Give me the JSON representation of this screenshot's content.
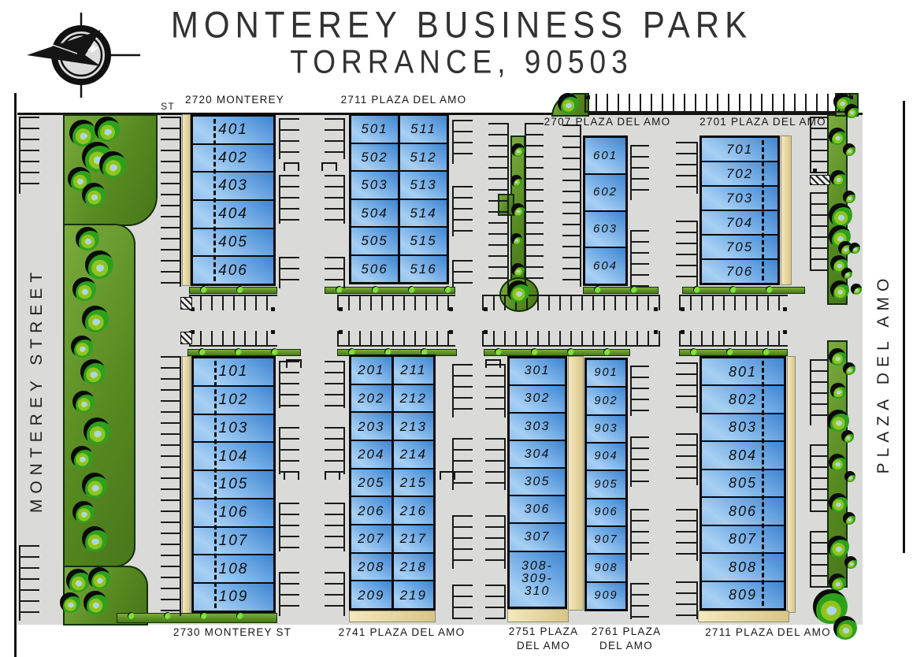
{
  "title": {
    "line1": "MONTEREY BUSINESS PARK",
    "line2": "TORRANCE, 90503"
  },
  "streets": {
    "left": "MONTEREY STREET",
    "right": "PLAZA DEL AMO",
    "st_abbrev": "ST"
  },
  "icons": {
    "compass": "compass-rose-north-arrow",
    "tree": "tree",
    "bush": "shrub"
  },
  "colors": {
    "building_blue_dark": "#3f85cf",
    "building_blue_light": "#a7d0f4",
    "planter_green": "#578a21",
    "hedge_green": "#467a16",
    "tree_green": "#2da11c",
    "pavement_gray": "#dadad8",
    "walkway_tan": "#ecdfae",
    "line_black": "#111111"
  },
  "buildings": [
    {
      "id": "b2720",
      "address": "2720 MONTEREY",
      "units": [
        "401",
        "402",
        "403",
        "404",
        "405",
        "406"
      ]
    },
    {
      "id": "b2711n",
      "address": "2711 PLAZA DEL AMO",
      "units_left": [
        "501",
        "502",
        "503",
        "504",
        "505",
        "506"
      ],
      "units_right": [
        "511",
        "512",
        "513",
        "514",
        "515",
        "516"
      ]
    },
    {
      "id": "b2707",
      "address": "2707 PLAZA DEL AMO",
      "units": [
        "601",
        "602",
        "603",
        "604"
      ]
    },
    {
      "id": "b2701",
      "address": "2701 PLAZA DEL AMO",
      "units": [
        "701",
        "702",
        "703",
        "704",
        "705",
        "706"
      ]
    },
    {
      "id": "b2730",
      "address": "2730 MONTEREY ST",
      "units": [
        "101",
        "102",
        "103",
        "104",
        "105",
        "106",
        "107",
        "108",
        "109"
      ]
    },
    {
      "id": "b2741",
      "address": "2741 PLAZA DEL AMO",
      "units_left": [
        "201",
        "202",
        "203",
        "204",
        "205",
        "206",
        "207",
        "208",
        "209"
      ],
      "units_right": [
        "211",
        "212",
        "213",
        "214",
        "215",
        "216",
        "217",
        "218",
        "219"
      ]
    },
    {
      "id": "b2751",
      "address": "2751 PLAZA DEL AMO",
      "units": [
        "301",
        "302",
        "303",
        "304",
        "305",
        "306",
        "307",
        "308-\n309-\n310"
      ]
    },
    {
      "id": "b2761",
      "address": "2761 PLAZA DEL AMO",
      "units": [
        "901",
        "902",
        "903",
        "904",
        "905",
        "906",
        "907",
        "908",
        "909"
      ]
    },
    {
      "id": "b2711s",
      "address": "2711 PLAZA DEL AMO",
      "units": [
        "801",
        "802",
        "803",
        "804",
        "805",
        "806",
        "807",
        "808",
        "809"
      ]
    }
  ]
}
